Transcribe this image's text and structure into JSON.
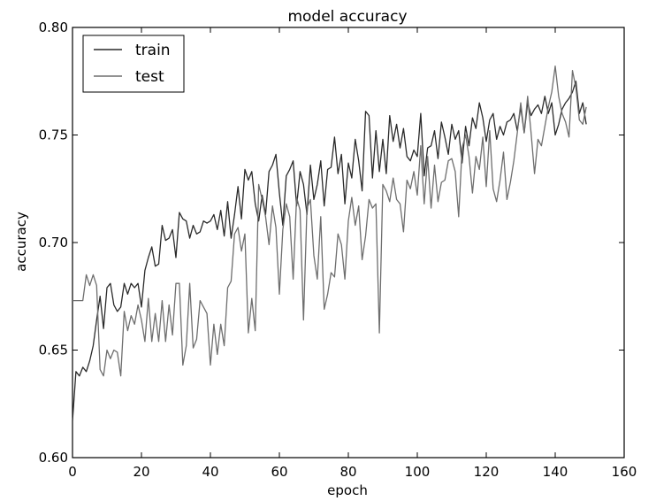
{
  "chart_data": {
    "type": "line",
    "title": "model accuracy",
    "xlabel": "epoch",
    "ylabel": "accuracy",
    "xlim": [
      0,
      160
    ],
    "ylim": [
      0.6,
      0.8
    ],
    "xticks": [
      "0",
      "20",
      "40",
      "60",
      "80",
      "100",
      "120",
      "140",
      "160"
    ],
    "yticks": [
      "0.60",
      "0.65",
      "0.70",
      "0.75",
      "0.80"
    ],
    "grid": false,
    "legend_position": "top-left",
    "series": [
      {
        "name": "train",
        "color": "#2a2a2a",
        "x": [
          0,
          1,
          2,
          3,
          4,
          5,
          6,
          7,
          8,
          9,
          10,
          11,
          12,
          13,
          14,
          15,
          16,
          17,
          18,
          19,
          20,
          21,
          22,
          23,
          24,
          25,
          26,
          27,
          28,
          29,
          30,
          31,
          32,
          33,
          34,
          35,
          36,
          37,
          38,
          39,
          40,
          41,
          42,
          43,
          44,
          45,
          46,
          47,
          48,
          49,
          50,
          51,
          52,
          53,
          54,
          55,
          56,
          57,
          58,
          59,
          60,
          61,
          62,
          63,
          64,
          65,
          66,
          67,
          68,
          69,
          70,
          71,
          72,
          73,
          74,
          75,
          76,
          77,
          78,
          79,
          80,
          81,
          82,
          83,
          84,
          85,
          86,
          87,
          88,
          89,
          90,
          91,
          92,
          93,
          94,
          95,
          96,
          97,
          98,
          99,
          100,
          101,
          102,
          103,
          104,
          105,
          106,
          107,
          108,
          109,
          110,
          111,
          112,
          113,
          114,
          115,
          116,
          117,
          118,
          119,
          120,
          121,
          122,
          123,
          124,
          125,
          126,
          127,
          128,
          129,
          130,
          131,
          132,
          133,
          134,
          135,
          136,
          137,
          138,
          139,
          140,
          141,
          142,
          143,
          144,
          145,
          146,
          147,
          148,
          149
        ],
        "y": [
          0.617,
          0.64,
          0.638,
          0.642,
          0.64,
          0.645,
          0.652,
          0.664,
          0.675,
          0.66,
          0.679,
          0.681,
          0.671,
          0.668,
          0.67,
          0.681,
          0.676,
          0.681,
          0.679,
          0.681,
          0.67,
          0.687,
          0.693,
          0.698,
          0.689,
          0.69,
          0.708,
          0.701,
          0.702,
          0.706,
          0.693,
          0.714,
          0.711,
          0.71,
          0.702,
          0.708,
          0.704,
          0.705,
          0.71,
          0.709,
          0.71,
          0.713,
          0.706,
          0.715,
          0.703,
          0.719,
          0.702,
          0.713,
          0.726,
          0.711,
          0.734,
          0.729,
          0.733,
          0.718,
          0.71,
          0.722,
          0.713,
          0.733,
          0.736,
          0.741,
          0.723,
          0.708,
          0.731,
          0.734,
          0.738,
          0.717,
          0.733,
          0.727,
          0.713,
          0.736,
          0.72,
          0.727,
          0.738,
          0.717,
          0.734,
          0.735,
          0.749,
          0.732,
          0.741,
          0.718,
          0.737,
          0.73,
          0.748,
          0.738,
          0.724,
          0.761,
          0.759,
          0.73,
          0.752,
          0.733,
          0.748,
          0.732,
          0.759,
          0.747,
          0.755,
          0.744,
          0.753,
          0.74,
          0.738,
          0.743,
          0.74,
          0.76,
          0.731,
          0.744,
          0.745,
          0.752,
          0.739,
          0.756,
          0.749,
          0.741,
          0.755,
          0.748,
          0.752,
          0.737,
          0.754,
          0.745,
          0.758,
          0.753,
          0.765,
          0.758,
          0.747,
          0.757,
          0.76,
          0.748,
          0.754,
          0.75,
          0.756,
          0.757,
          0.76,
          0.752,
          0.763,
          0.751,
          0.765,
          0.759,
          0.762,
          0.764,
          0.76,
          0.768,
          0.76,
          0.765,
          0.75,
          0.755,
          0.762,
          0.765,
          0.767,
          0.77,
          0.775,
          0.76,
          0.765,
          0.755
        ]
      },
      {
        "name": "test",
        "color": "#6e6e6e",
        "x": [
          0,
          1,
          2,
          3,
          4,
          5,
          6,
          7,
          8,
          9,
          10,
          11,
          12,
          13,
          14,
          15,
          16,
          17,
          18,
          19,
          20,
          21,
          22,
          23,
          24,
          25,
          26,
          27,
          28,
          29,
          30,
          31,
          32,
          33,
          34,
          35,
          36,
          37,
          38,
          39,
          40,
          41,
          42,
          43,
          44,
          45,
          46,
          47,
          48,
          49,
          50,
          51,
          52,
          53,
          54,
          55,
          56,
          57,
          58,
          59,
          60,
          61,
          62,
          63,
          64,
          65,
          66,
          67,
          68,
          69,
          70,
          71,
          72,
          73,
          74,
          75,
          76,
          77,
          78,
          79,
          80,
          81,
          82,
          83,
          84,
          85,
          86,
          87,
          88,
          89,
          90,
          91,
          92,
          93,
          94,
          95,
          96,
          97,
          98,
          99,
          100,
          101,
          102,
          103,
          104,
          105,
          106,
          107,
          108,
          109,
          110,
          111,
          112,
          113,
          114,
          115,
          116,
          117,
          118,
          119,
          120,
          121,
          122,
          123,
          124,
          125,
          126,
          127,
          128,
          129,
          130,
          131,
          132,
          133,
          134,
          135,
          136,
          137,
          138,
          139,
          140,
          141,
          142,
          143,
          144,
          145,
          146,
          147,
          148,
          149
        ],
        "y": [
          0.673,
          0.673,
          0.673,
          0.673,
          0.685,
          0.68,
          0.685,
          0.68,
          0.641,
          0.638,
          0.65,
          0.646,
          0.65,
          0.649,
          0.638,
          0.668,
          0.659,
          0.666,
          0.662,
          0.671,
          0.664,
          0.654,
          0.674,
          0.654,
          0.667,
          0.654,
          0.673,
          0.654,
          0.671,
          0.657,
          0.681,
          0.681,
          0.643,
          0.652,
          0.681,
          0.651,
          0.655,
          0.673,
          0.67,
          0.667,
          0.643,
          0.662,
          0.648,
          0.662,
          0.652,
          0.679,
          0.682,
          0.704,
          0.707,
          0.696,
          0.704,
          0.658,
          0.674,
          0.659,
          0.727,
          0.72,
          0.712,
          0.699,
          0.717,
          0.707,
          0.676,
          0.706,
          0.718,
          0.712,
          0.683,
          0.721,
          0.715,
          0.664,
          0.716,
          0.72,
          0.694,
          0.683,
          0.712,
          0.669,
          0.676,
          0.686,
          0.684,
          0.704,
          0.699,
          0.683,
          0.71,
          0.721,
          0.708,
          0.717,
          0.692,
          0.703,
          0.72,
          0.716,
          0.718,
          0.658,
          0.727,
          0.724,
          0.719,
          0.73,
          0.72,
          0.718,
          0.705,
          0.729,
          0.725,
          0.733,
          0.722,
          0.745,
          0.718,
          0.74,
          0.716,
          0.736,
          0.719,
          0.728,
          0.729,
          0.738,
          0.739,
          0.733,
          0.712,
          0.744,
          0.75,
          0.74,
          0.723,
          0.74,
          0.734,
          0.749,
          0.726,
          0.752,
          0.725,
          0.719,
          0.729,
          0.742,
          0.72,
          0.728,
          0.738,
          0.751,
          0.765,
          0.751,
          0.768,
          0.751,
          0.732,
          0.748,
          0.745,
          0.754,
          0.763,
          0.77,
          0.782,
          0.768,
          0.76,
          0.756,
          0.749,
          0.78,
          0.772,
          0.757,
          0.755,
          0.763
        ]
      }
    ]
  }
}
